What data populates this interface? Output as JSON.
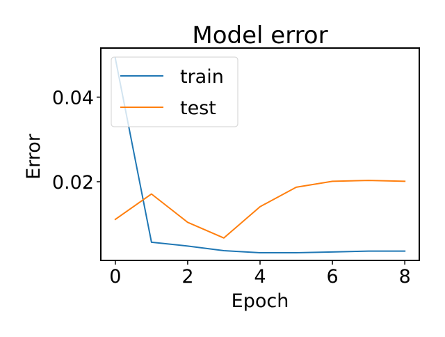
{
  "chart_data": {
    "type": "line",
    "title": "Model error",
    "xlabel": "Epoch",
    "ylabel": "Error",
    "x": [
      0,
      1,
      2,
      3,
      4,
      5,
      6,
      7,
      8
    ],
    "xlim": [
      -0.4,
      8.4
    ],
    "ylim": [
      0.0014,
      0.0516
    ],
    "xticks": [
      0,
      2,
      4,
      6,
      8
    ],
    "xtick_labels": [
      "0",
      "2",
      "4",
      "6",
      "8"
    ],
    "yticks": [
      0.02,
      0.04
    ],
    "ytick_labels": [
      "0.02",
      "0.04"
    ],
    "grid": false,
    "legend_position": "top-left",
    "series": [
      {
        "name": "train",
        "color": "#1f77b4",
        "values": [
          0.0492,
          0.0057,
          0.0048,
          0.0037,
          0.0032,
          0.0032,
          0.0034,
          0.0036,
          0.0036
        ]
      },
      {
        "name": "test",
        "color": "#ff7f0e",
        "values": [
          0.0111,
          0.0171,
          0.0104,
          0.0067,
          0.0141,
          0.0187,
          0.0201,
          0.0203,
          0.0201
        ]
      }
    ]
  }
}
